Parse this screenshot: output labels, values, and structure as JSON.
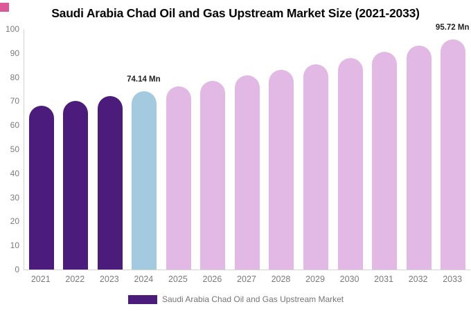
{
  "page": {
    "background": "#ffffff"
  },
  "corner_marker": {
    "color": "#dd5897"
  },
  "title": "Saudi Arabia Chad Oil and Gas Upstream Market Size (2021-2033)",
  "legend": {
    "label": "Saudi Arabia Chad Oil and Gas Upstream Market",
    "swatch_color": "#4c1c7c",
    "position": "bottom"
  },
  "colors": {
    "bar_historical": "#4c1c7c",
    "bar_current": "#a3cade",
    "bar_forecast": "#e2b9e5",
    "axis_line": "#d4d4d4",
    "tick_text": "#7a7a7a",
    "annotation_text": "#222222",
    "title_text": "#060606"
  },
  "chart_data": {
    "type": "bar",
    "title": "Saudi Arabia Chad Oil and Gas Upstream Market Size (2021-2033)",
    "xlabel": "",
    "ylabel": "",
    "unit": "Mn",
    "categories": [
      "2021",
      "2022",
      "2023",
      "2024",
      "2025",
      "2026",
      "2027",
      "2028",
      "2029",
      "2030",
      "2031",
      "2032",
      "2033"
    ],
    "values": [
      68.08,
      70.04,
      72.06,
      74.14,
      76.28,
      78.48,
      80.74,
      83.07,
      85.47,
      87.93,
      90.47,
      93.08,
      95.72
    ],
    "bar_colors": [
      "#4c1c7c",
      "#4c1c7c",
      "#4c1c7c",
      "#a3cade",
      "#e2b9e5",
      "#e2b9e5",
      "#e2b9e5",
      "#e2b9e5",
      "#e2b9e5",
      "#e2b9e5",
      "#e2b9e5",
      "#e2b9e5",
      "#e2b9e5"
    ],
    "ylim": [
      0,
      100
    ],
    "yticks": [
      0,
      10,
      20,
      30,
      40,
      50,
      60,
      70,
      80,
      90,
      100
    ],
    "grid": false,
    "legend_position": "bottom",
    "series_name": "Saudi Arabia Chad Oil and Gas Upstream Market",
    "annotations": [
      {
        "index": 3,
        "label": "74.14 Mn"
      },
      {
        "index": 12,
        "label": "95.72 Mn"
      }
    ]
  }
}
